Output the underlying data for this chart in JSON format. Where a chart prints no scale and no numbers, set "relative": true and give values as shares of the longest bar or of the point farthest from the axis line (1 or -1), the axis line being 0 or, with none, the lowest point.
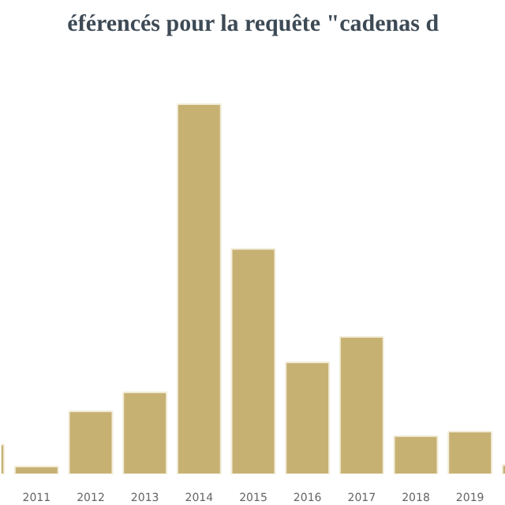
{
  "chart_data": {
    "type": "bar",
    "title": "éférencés pour la requête \"cadenas d",
    "relative": true,
    "categories": [
      null,
      "2011",
      "2012",
      "2013",
      "2014",
      "2015",
      "2016",
      "2017",
      "2018",
      "2019",
      null
    ],
    "values": [
      0.08,
      0.021,
      0.17,
      0.221,
      1,
      0.609,
      0.302,
      0.371,
      0.103,
      0.115,
      0.025
    ],
    "color": "#c6b173"
  }
}
